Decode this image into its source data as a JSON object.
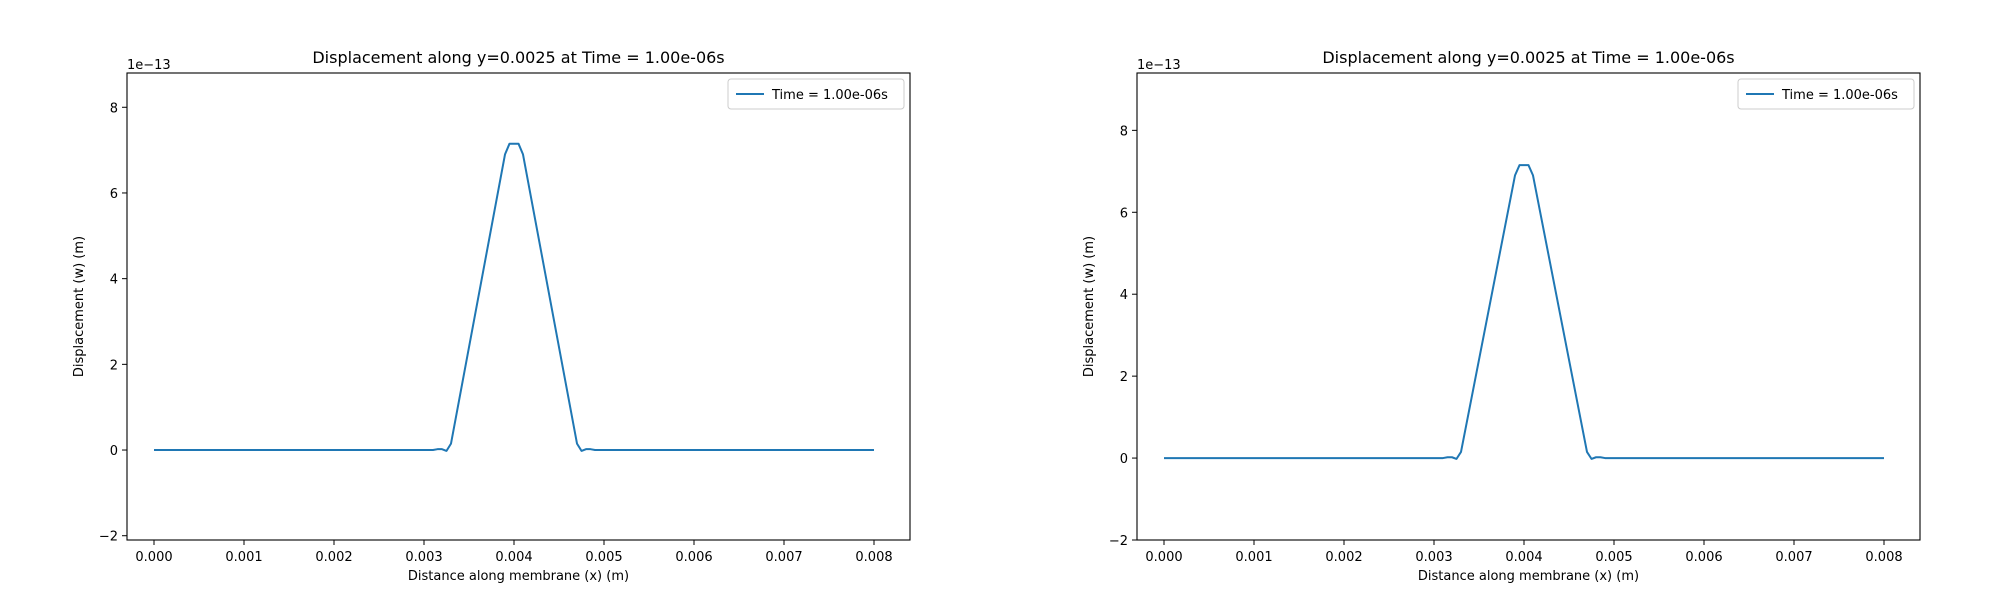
{
  "chart_data": [
    {
      "type": "line",
      "title": "Displacement along y=0.0025 at Time = 1.00e-06s",
      "xlabel": "Distance along membrane (x) (m)",
      "ylabel": "Displacement (w) (m)",
      "y_offset_label": "1e−13",
      "xlim": [
        -0.0003,
        0.0084
      ],
      "ylim": [
        -2.1,
        8.8
      ],
      "x_ticks": [
        0.0,
        0.001,
        0.002,
        0.003,
        0.004,
        0.005,
        0.006,
        0.007,
        0.008
      ],
      "x_tick_labels": [
        "0.000",
        "0.001",
        "0.002",
        "0.003",
        "0.004",
        "0.005",
        "0.006",
        "0.007",
        "0.008"
      ],
      "y_ticks": [
        -2,
        0,
        2,
        4,
        6,
        8
      ],
      "y_tick_labels": [
        "−2",
        "0",
        "2",
        "4",
        "6",
        "8"
      ],
      "grid": false,
      "legend_position": "top-right",
      "series": [
        {
          "name": "Time = 1.00e-06s",
          "color": "#1f77b4",
          "x": [
            0.0,
            0.0031,
            0.00315,
            0.0032,
            0.00325,
            0.0033,
            0.0039,
            0.00395,
            0.004,
            0.00405,
            0.0041,
            0.0047,
            0.00475,
            0.0048,
            0.00485,
            0.0049,
            0.008
          ],
          "y": [
            0.0,
            0.0,
            0.02,
            0.02,
            -0.02,
            0.15,
            6.9,
            7.15,
            7.15,
            7.15,
            6.9,
            0.15,
            -0.02,
            0.02,
            0.02,
            0.0,
            0.0
          ]
        }
      ]
    },
    {
      "type": "line",
      "title": "Displacement along y=0.0025 at Time = 1.00e-06s",
      "xlabel": "Distance along membrane (x) (m)",
      "ylabel": "Displacement (w) (m)",
      "y_offset_label": "1e−13",
      "xlim": [
        -0.0003,
        0.0084
      ],
      "ylim": [
        -2.0,
        9.4
      ],
      "x_ticks": [
        0.0,
        0.001,
        0.002,
        0.003,
        0.004,
        0.005,
        0.006,
        0.007,
        0.008
      ],
      "x_tick_labels": [
        "0.000",
        "0.001",
        "0.002",
        "0.003",
        "0.004",
        "0.005",
        "0.006",
        "0.007",
        "0.008"
      ],
      "y_ticks": [
        -2,
        0,
        2,
        4,
        6,
        8
      ],
      "y_tick_labels": [
        "−2",
        "0",
        "2",
        "4",
        "6",
        "8"
      ],
      "grid": false,
      "legend_position": "top-right",
      "series": [
        {
          "name": "Time = 1.00e-06s",
          "color": "#1f77b4",
          "x": [
            0.0,
            0.0031,
            0.00315,
            0.0032,
            0.00325,
            0.0033,
            0.0039,
            0.00395,
            0.004,
            0.00405,
            0.0041,
            0.0047,
            0.00475,
            0.0048,
            0.00485,
            0.0049,
            0.008
          ],
          "y": [
            0.0,
            0.0,
            0.02,
            0.02,
            -0.02,
            0.15,
            6.9,
            7.15,
            7.15,
            7.15,
            6.9,
            0.15,
            -0.02,
            0.02,
            0.02,
            0.0,
            0.0
          ]
        }
      ]
    }
  ]
}
